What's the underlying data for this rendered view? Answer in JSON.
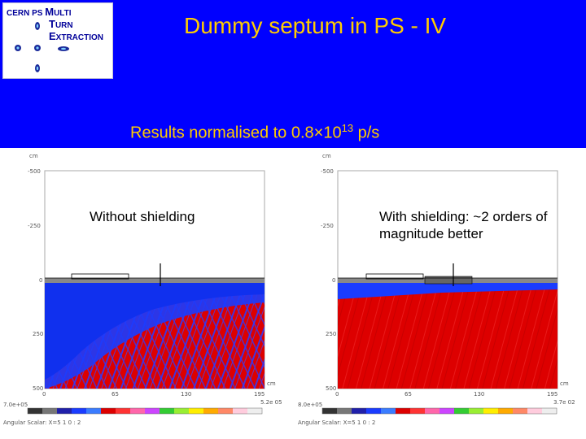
{
  "logo": {
    "line1_a": "CERN PS",
    "line1_b": "M",
    "line1_c": "ULTI",
    "line2_a": "T",
    "line2_b": "URN",
    "line3_a": "E",
    "line3_b": "XTRACTION"
  },
  "title": "Dummy septum in PS - IV",
  "subtitle": {
    "prefix": "Results normalised to 0.8×10",
    "exponent": "13",
    "suffix": " p/s"
  },
  "plots": {
    "left": {
      "annotation": "Without shielding",
      "unit_top": "cm",
      "unit_right": "cm",
      "y_ticks": [
        "-500",
        "-250",
        "0",
        "250",
        "500"
      ],
      "x_ticks": [
        "0",
        "65",
        "130",
        "195"
      ],
      "corner_left": "7.0e+05",
      "corner_right": "5.2e 05",
      "footer": "Angular Scalar: X=5 1 0 : 2"
    },
    "right": {
      "annotation": "With shielding: ~2 orders of magnitude better",
      "unit_top": "cm",
      "unit_right": "cm",
      "y_ticks": [
        "-500",
        "-250",
        "0",
        "250",
        "500"
      ],
      "x_ticks": [
        "0",
        "65",
        "130",
        "195"
      ],
      "corner_left": "8.0e+05",
      "corner_right": "3.7e 02",
      "footer": "Angular Scalar: X=5 1 0 : 2"
    }
  },
  "colors": {
    "header_bg": "#0000ff",
    "title": "#ffcc00",
    "dose_high": "#dd0000",
    "dose_mid": "#1a3cff"
  }
}
